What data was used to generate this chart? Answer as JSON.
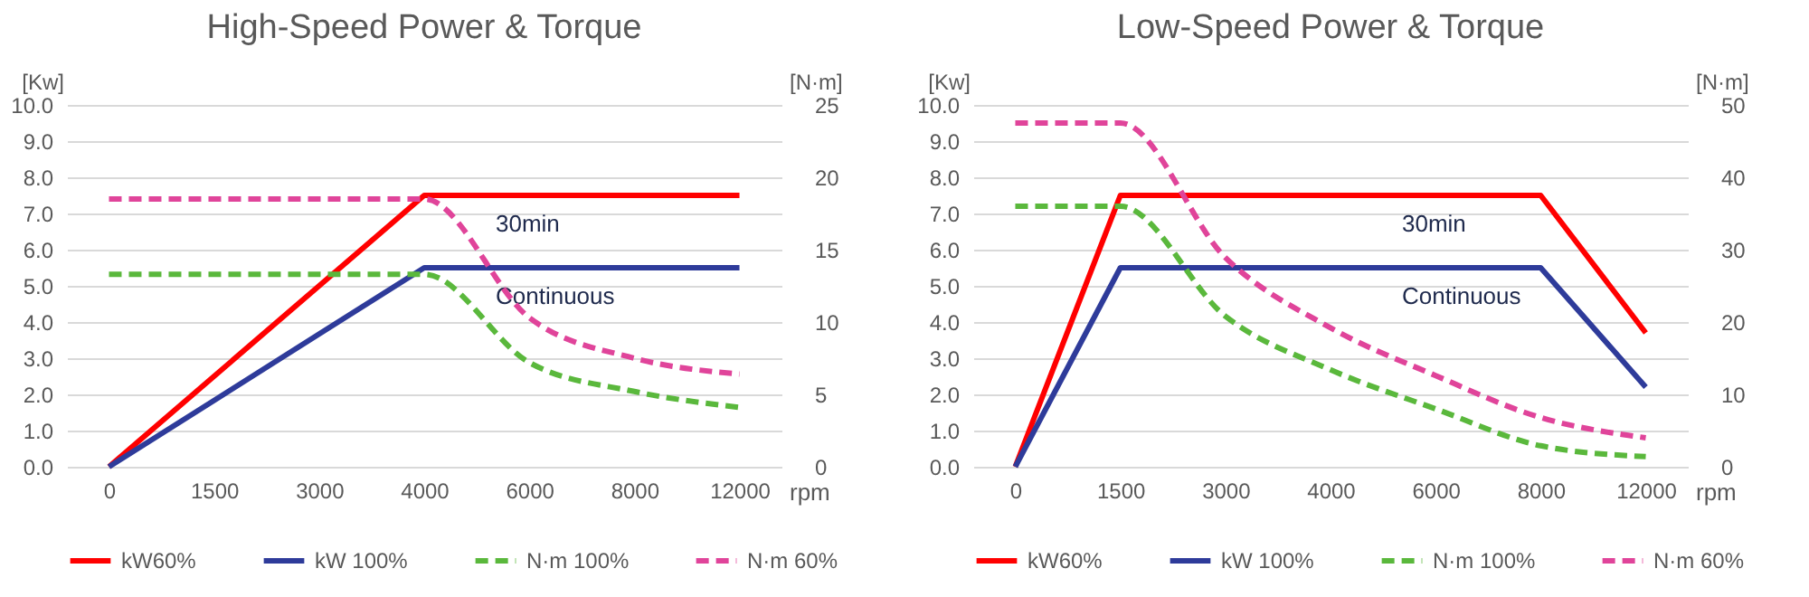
{
  "chart_data": [
    {
      "type": "line",
      "title": "High-Speed Power & Torque",
      "xlabel": "rpm",
      "ylabel": "[Kw]",
      "y2label": "[N·m]",
      "categories": [
        "0",
        "1500",
        "3000",
        "4000",
        "6000",
        "8000",
        "12000"
      ],
      "series": [
        {
          "name": "kW60%",
          "color": "#ff0000",
          "line_style": "solid",
          "values": [
            0,
            2.5,
            5.0,
            7.5,
            7.5,
            7.5,
            7.5
          ]
        },
        {
          "name": "kW 100%",
          "color": "#2e3b9a",
          "line_style": "solid",
          "values": [
            0,
            1.83,
            3.67,
            5.5,
            5.5,
            5.5,
            5.5
          ]
        },
        {
          "name": "N·m 100%",
          "color": "#5ab83c",
          "line_style": "dashed",
          "axis": "y2",
          "values": [
            13.3,
            13.3,
            13.3,
            13.3,
            7.2,
            5.2,
            4.1
          ]
        },
        {
          "name": "N·m 60%",
          "color": "#e0449a",
          "line_style": "dashed",
          "axis": "y2",
          "values": [
            18.5,
            18.5,
            18.5,
            18.5,
            10.3,
            7.5,
            6.4
          ]
        }
      ],
      "ylim": [
        0,
        10
      ],
      "yticks": [
        {
          "value": 0,
          "label": "0.0"
        },
        {
          "value": 1,
          "label": "1.0"
        },
        {
          "value": 2,
          "label": "2.0"
        },
        {
          "value": 3,
          "label": "3.0"
        },
        {
          "value": 4,
          "label": "4.0"
        },
        {
          "value": 5,
          "label": "5.0"
        },
        {
          "value": 6,
          "label": "6.0"
        },
        {
          "value": 7,
          "label": "7.0"
        },
        {
          "value": 8,
          "label": "8.0"
        },
        {
          "value": 9,
          "label": "9.0"
        },
        {
          "value": 10,
          "label": "10.0"
        }
      ],
      "y2lim": [
        0,
        25
      ],
      "y2ticks": [
        0,
        5,
        10,
        15,
        20,
        25
      ],
      "grid": "y",
      "legend": "bottom",
      "annotations": [
        "30min",
        "Continuous"
      ]
    },
    {
      "type": "line",
      "title": "Low-Speed Power & Torque",
      "xlabel": "rpm",
      "ylabel": "[Kw]",
      "y2label": "[N·m]",
      "categories": [
        "0",
        "1500",
        "3000",
        "4000",
        "6000",
        "8000",
        "12000"
      ],
      "series": [
        {
          "name": "kW60%",
          "color": "#ff0000",
          "line_style": "solid",
          "values": [
            0,
            7.5,
            7.5,
            7.5,
            7.5,
            7.5,
            3.7
          ]
        },
        {
          "name": "kW 100%",
          "color": "#2e3b9a",
          "line_style": "solid",
          "values": [
            0,
            5.5,
            5.5,
            5.5,
            5.5,
            5.5,
            2.2
          ]
        },
        {
          "name": "N·m 100%",
          "color": "#5ab83c",
          "line_style": "dashed",
          "axis": "y2",
          "values": [
            36.0,
            36.0,
            20.8,
            13.4,
            8.0,
            2.9,
            1.4
          ]
        },
        {
          "name": "N·m 60%",
          "color": "#e0449a",
          "line_style": "dashed",
          "axis": "y2",
          "values": [
            47.5,
            47.5,
            28.9,
            19.2,
            12.6,
            6.8,
            4.0
          ]
        }
      ],
      "ylim": [
        0,
        10
      ],
      "yticks": [
        {
          "value": 0,
          "label": "0.0"
        },
        {
          "value": 1,
          "label": "1.0"
        },
        {
          "value": 2,
          "label": "2.0"
        },
        {
          "value": 3,
          "label": "3.0"
        },
        {
          "value": 4,
          "label": "4.0"
        },
        {
          "value": 5,
          "label": "5.0"
        },
        {
          "value": 6,
          "label": "6.0"
        },
        {
          "value": 7,
          "label": "7.0"
        },
        {
          "value": 8,
          "label": "8.0"
        },
        {
          "value": 9,
          "label": "9.0"
        },
        {
          "value": 10,
          "label": "10.0"
        }
      ],
      "y2lim": [
        0,
        50
      ],
      "y2ticks": [
        0,
        10,
        20,
        30,
        40,
        50
      ],
      "grid": "y",
      "legend": "bottom",
      "annotations": [
        "30min",
        "Continuous"
      ]
    }
  ]
}
